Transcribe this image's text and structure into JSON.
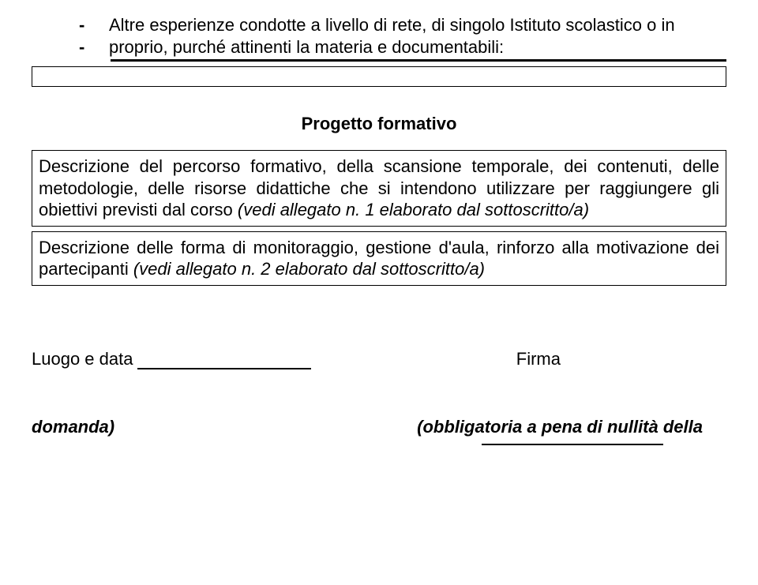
{
  "intro": {
    "item1": "Altre esperienze condotte a livello di rete, di singolo Istituto scolastico o in",
    "item2": "proprio, purché attinenti la materia  e documentabili:"
  },
  "section_title": "Progetto formativo",
  "box1": {
    "text": "Descrizione del percorso formativo, della scansione temporale, dei contenuti, delle metodologie, delle risorse didattiche che si intendono utilizzare per raggiungere gli obiettivi previsti dal corso ",
    "italic_part": "(vedi allegato n. 1 elaborato dal sottoscritto/a)"
  },
  "box2": {
    "text": "Descrizione delle forma di monitoraggio, gestione d'aula, rinforzo alla motivazione dei partecipanti ",
    "italic_part": "(vedi allegato n. 2 elaborato dal sottoscritto/a)"
  },
  "signature": {
    "luogo_label": "Luogo e data",
    "firma_label": "Firma"
  },
  "footer": {
    "domanda": "domanda)",
    "note": "(obbligatoria a pena di nullità della"
  }
}
